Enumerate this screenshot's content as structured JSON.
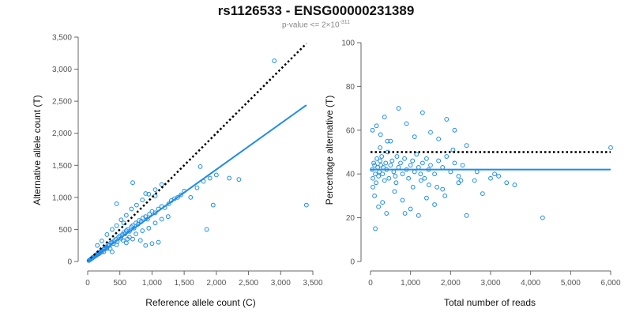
{
  "title": "rs1126533 - ENSG00000231389",
  "subtitle": {
    "prefix": "p-value <= 2×10",
    "exponent": "-311"
  },
  "colors": {
    "points": "#1f8ce6",
    "fit": "#1f8ce6",
    "reference": "#000000",
    "axis": "#666666"
  },
  "chart_data": [
    {
      "type": "scatter",
      "xlabel": "Reference allele count (C)",
      "ylabel": "Alternative allele count (T)",
      "xlim": [
        0,
        3500
      ],
      "ylim": [
        0,
        3500
      ],
      "xticks": [
        0,
        500,
        1000,
        1500,
        2000,
        2500,
        3000,
        3500
      ],
      "xtick_labels": [
        "0",
        "500",
        "1,000",
        "1,500",
        "2,000",
        "2,500",
        "3,000",
        "3,500"
      ],
      "yticks": [
        0,
        500,
        1000,
        1500,
        2000,
        2500,
        3000,
        3500
      ],
      "ytick_labels": [
        "0",
        "500",
        "1,000",
        "1,500",
        "2,000",
        "2,500",
        "3,000",
        "3,500"
      ],
      "lines": [
        {
          "name": "equal counts (y = x)",
          "style": "dotted",
          "x": [
            0,
            3400
          ],
          "y": [
            0,
            3400
          ]
        },
        {
          "name": "fit",
          "style": "solid",
          "x": [
            0,
            3400
          ],
          "y": [
            0,
            2440
          ]
        }
      ],
      "points": [
        [
          20,
          15
        ],
        [
          40,
          30
        ],
        [
          55,
          45
        ],
        [
          70,
          50
        ],
        [
          80,
          65
        ],
        [
          95,
          70
        ],
        [
          110,
          80
        ],
        [
          120,
          100
        ],
        [
          135,
          95
        ],
        [
          150,
          110
        ],
        [
          160,
          130
        ],
        [
          175,
          120
        ],
        [
          190,
          150
        ],
        [
          200,
          140
        ],
        [
          215,
          170
        ],
        [
          230,
          160
        ],
        [
          245,
          190
        ],
        [
          260,
          200
        ],
        [
          275,
          210
        ],
        [
          290,
          230
        ],
        [
          300,
          220
        ],
        [
          320,
          260
        ],
        [
          340,
          250
        ],
        [
          360,
          290
        ],
        [
          380,
          300
        ],
        [
          400,
          280
        ],
        [
          420,
          330
        ],
        [
          440,
          350
        ],
        [
          460,
          310
        ],
        [
          480,
          380
        ],
        [
          500,
          400
        ],
        [
          520,
          360
        ],
        [
          540,
          420
        ],
        [
          560,
          450
        ],
        [
          580,
          430
        ],
        [
          600,
          480
        ],
        [
          620,
          500
        ],
        [
          650,
          470
        ],
        [
          680,
          540
        ],
        [
          700,
          560
        ],
        [
          720,
          520
        ],
        [
          750,
          600
        ],
        [
          780,
          580
        ],
        [
          800,
          640
        ],
        [
          830,
          620
        ],
        [
          860,
          680
        ],
        [
          900,
          700
        ],
        [
          930,
          660
        ],
        [
          960,
          740
        ],
        [
          1000,
          780
        ],
        [
          1050,
          760
        ],
        [
          1100,
          820
        ],
        [
          1150,
          860
        ],
        [
          1200,
          840
        ],
        [
          1260,
          900
        ],
        [
          1300,
          950
        ],
        [
          1350,
          980
        ],
        [
          1400,
          1000
        ],
        [
          1450,
          1040
        ],
        [
          1500,
          1100
        ],
        [
          150,
          250
        ],
        [
          220,
          320
        ],
        [
          300,
          420
        ],
        [
          380,
          500
        ],
        [
          450,
          560
        ],
        [
          520,
          650
        ],
        [
          600,
          720
        ],
        [
          680,
          820
        ],
        [
          760,
          880
        ],
        [
          850,
          960
        ],
        [
          950,
          1050
        ],
        [
          1050,
          1120
        ],
        [
          1150,
          1200
        ],
        [
          250,
          150
        ],
        [
          350,
          200
        ],
        [
          450,
          260
        ],
        [
          550,
          330
        ],
        [
          650,
          380
        ],
        [
          750,
          430
        ],
        [
          850,
          480
        ],
        [
          950,
          520
        ],
        [
          1050,
          600
        ],
        [
          1150,
          660
        ],
        [
          1250,
          700
        ],
        [
          900,
          250
        ],
        [
          1000,
          280
        ],
        [
          1100,
          300
        ],
        [
          820,
          330
        ],
        [
          700,
          350
        ],
        [
          600,
          290
        ],
        [
          1600,
          1000
        ],
        [
          1700,
          1150
        ],
        [
          1800,
          1250
        ],
        [
          1900,
          1300
        ],
        [
          2000,
          1350
        ],
        [
          1750,
          1480
        ],
        [
          1850,
          500
        ],
        [
          1950,
          880
        ],
        [
          2200,
          1300
        ],
        [
          2350,
          1280
        ],
        [
          2900,
          3130
        ],
        [
          3400,
          880
        ],
        [
          700,
          1230
        ],
        [
          900,
          1060
        ],
        [
          1050,
          1020
        ],
        [
          560,
          600
        ],
        [
          620,
          350
        ],
        [
          450,
          900
        ],
        [
          300,
          200
        ],
        [
          380,
          150
        ]
      ]
    },
    {
      "type": "scatter",
      "xlabel": "Total number of reads",
      "ylabel": "Percentage alternative (T)",
      "xlim": [
        0,
        6000
      ],
      "ylim": [
        0,
        100
      ],
      "xticks": [
        0,
        1000,
        2000,
        3000,
        4000,
        5000,
        6000
      ],
      "xtick_labels": [
        "0",
        "1,000",
        "2,000",
        "3,000",
        "4,000",
        "5,000",
        "6,000"
      ],
      "yticks": [
        0,
        20,
        40,
        60,
        80,
        100
      ],
      "ytick_labels": [
        "0",
        "20",
        "40",
        "60",
        "80",
        "100"
      ],
      "lines": [
        {
          "name": "50% reference",
          "style": "dotted",
          "x": [
            0,
            6000
          ],
          "y": [
            50,
            50
          ]
        },
        {
          "name": "fit",
          "style": "solid",
          "x": [
            0,
            6000
          ],
          "y": [
            42,
            42
          ]
        }
      ],
      "points": [
        [
          40,
          42
        ],
        [
          60,
          38
        ],
        [
          80,
          45
        ],
        [
          100,
          44
        ],
        [
          120,
          40
        ],
        [
          140,
          36
        ],
        [
          160,
          47
        ],
        [
          180,
          43
        ],
        [
          200,
          39
        ],
        [
          220,
          41
        ],
        [
          240,
          46
        ],
        [
          260,
          44
        ],
        [
          280,
          48
        ],
        [
          300,
          40
        ],
        [
          320,
          43
        ],
        [
          350,
          37
        ],
        [
          380,
          45
        ],
        [
          400,
          42
        ],
        [
          430,
          50
        ],
        [
          460,
          38
        ],
        [
          500,
          44
        ],
        [
          540,
          46
        ],
        [
          580,
          41
        ],
        [
          620,
          39
        ],
        [
          660,
          48
        ],
        [
          700,
          43
        ],
        [
          750,
          45
        ],
        [
          800,
          40
        ],
        [
          850,
          47
        ],
        [
          900,
          42
        ],
        [
          950,
          38
        ],
        [
          1000,
          44
        ],
        [
          1050,
          46
        ],
        [
          1100,
          41
        ],
        [
          1150,
          49
        ],
        [
          1200,
          43
        ],
        [
          1250,
          40
        ],
        [
          1300,
          45
        ],
        [
          1350,
          38
        ],
        [
          1400,
          47
        ],
        [
          1450,
          42
        ],
        [
          1500,
          44
        ],
        [
          1600,
          40
        ],
        [
          1700,
          46
        ],
        [
          1800,
          43
        ],
        [
          1900,
          48
        ],
        [
          2000,
          41
        ],
        [
          2100,
          45
        ],
        [
          2200,
          39
        ],
        [
          2300,
          44
        ],
        [
          50,
          60
        ],
        [
          150,
          62
        ],
        [
          250,
          58
        ],
        [
          350,
          66
        ],
        [
          500,
          55
        ],
        [
          700,
          70
        ],
        [
          900,
          63
        ],
        [
          1100,
          57
        ],
        [
          1300,
          68
        ],
        [
          1500,
          59
        ],
        [
          1700,
          56
        ],
        [
          1900,
          65
        ],
        [
          2100,
          60
        ],
        [
          2400,
          53
        ],
        [
          100,
          30
        ],
        [
          200,
          25
        ],
        [
          300,
          27
        ],
        [
          400,
          22
        ],
        [
          600,
          32
        ],
        [
          800,
          28
        ],
        [
          1000,
          24
        ],
        [
          1200,
          21
        ],
        [
          1400,
          29
        ],
        [
          1600,
          26
        ],
        [
          1800,
          33
        ],
        [
          2200,
          36
        ],
        [
          2400,
          21
        ],
        [
          2600,
          37
        ],
        [
          2800,
          31
        ],
        [
          3000,
          38
        ],
        [
          3200,
          39
        ],
        [
          3400,
          36
        ],
        [
          3600,
          35
        ],
        [
          3100,
          40
        ],
        [
          4300,
          20
        ],
        [
          6000,
          52
        ],
        [
          120,
          15
        ],
        [
          60,
          34
        ],
        [
          240,
          52
        ],
        [
          420,
          55
        ],
        [
          640,
          36
        ],
        [
          860,
          22
        ],
        [
          1060,
          34
        ],
        [
          1260,
          37
        ],
        [
          1460,
          35
        ],
        [
          1660,
          34
        ],
        [
          1860,
          30
        ],
        [
          2060,
          51
        ],
        [
          2260,
          37
        ],
        [
          2660,
          41
        ]
      ]
    }
  ]
}
